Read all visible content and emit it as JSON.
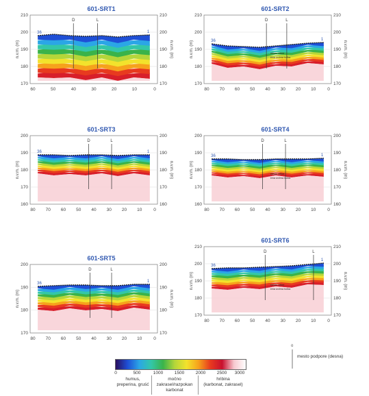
{
  "panels": [
    {
      "id": "p1",
      "title": "601-SRT1",
      "y_axis_label": "n.v.m. (m)",
      "y_ticks": [
        "170",
        "180",
        "190",
        "200",
        "210"
      ],
      "x_ticks": [
        "60",
        "50",
        "40",
        "30",
        "20",
        "10",
        "0"
      ],
      "start_label": "36",
      "end_label": "1",
      "marker_d": "D",
      "marker_l": "L",
      "note": ""
    },
    {
      "id": "p2",
      "title": "601-SRT2",
      "y_axis_label": "n.v.m. (m)",
      "y_ticks": [
        "170",
        "180",
        "190",
        "200",
        "210"
      ],
      "x_ticks": [
        "80",
        "70",
        "60",
        "50",
        "40",
        "30",
        "20",
        "10",
        "0"
      ],
      "start_label": "36",
      "end_label": "1",
      "marker_d": "D",
      "marker_l": "L",
      "note": "mesto vrtine\nčrna izvirna točka"
    },
    {
      "id": "p3",
      "title": "601-SRT3",
      "y_axis_label": "n.v.m. (m)",
      "y_ticks": [
        "160",
        "170",
        "180",
        "190",
        "200"
      ],
      "x_ticks": [
        "80",
        "70",
        "60",
        "50",
        "40",
        "30",
        "20",
        "10",
        "0"
      ],
      "start_label": "36",
      "end_label": "1",
      "marker_d": "D",
      "marker_l": "L",
      "note": ""
    },
    {
      "id": "p4",
      "title": "601-SRT4",
      "y_axis_label": "n.v.m. (m)",
      "y_ticks": [
        "160",
        "170",
        "180",
        "190",
        "200"
      ],
      "x_ticks": [
        "80",
        "70",
        "60",
        "50",
        "40",
        "30",
        "20",
        "10",
        "0"
      ],
      "start_label": "36",
      "end_label": "1",
      "marker_d": "D",
      "marker_l": "L",
      "note": "mesto vrtine\nčrna izvirna točka"
    },
    {
      "id": "p5",
      "title": "601-SRT5",
      "y_axis_label": "n.v.m. (m)",
      "y_ticks": [
        "170",
        "180",
        "190",
        "200"
      ],
      "x_ticks": [
        "80",
        "70",
        "60",
        "50",
        "40",
        "30",
        "20",
        "10",
        "0"
      ],
      "start_label": "36",
      "end_label": "1",
      "marker_d": "D",
      "marker_l": "L",
      "note": ""
    },
    {
      "id": "p6",
      "title": "601-SRT6",
      "y_axis_label": "n.v.m. (m)",
      "y_ticks": [
        "170",
        "180",
        "190",
        "200",
        "210"
      ],
      "x_ticks": [
        "80",
        "70",
        "60",
        "50",
        "40",
        "30",
        "20",
        "10",
        "0"
      ],
      "start_label": "36",
      "end_label": "1",
      "marker_d": "D",
      "marker_l": "L",
      "note": "mesto vrtine\nčrna izvirna točka"
    }
  ],
  "legend": {
    "ticks": [
      "0",
      "500",
      "1000",
      "1500",
      "2000",
      "2500",
      "3000"
    ],
    "classes": [
      {
        "label": "humus,\npreperina, gruść"
      },
      {
        "label": "močno\nzakrasel/razpokan\nkarbonat"
      },
      {
        "label": "hribina\n(karbonat, zakrasel)"
      }
    ],
    "colors": [
      "#2a0f5e",
      "#1e4fd6",
      "#2ba6e6",
      "#33c7a8",
      "#3ab34a",
      "#b5d63a",
      "#f3e22c",
      "#f6a21c",
      "#e83a1f",
      "#c8102e",
      "#f7c9cf",
      "#ffffff"
    ]
  },
  "marker_legend": {
    "label": "mesto podpore (desna)"
  }
}
